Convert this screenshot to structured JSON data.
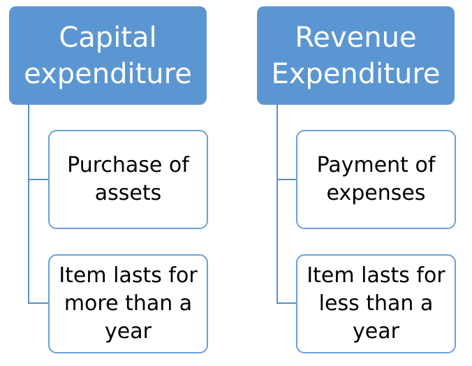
{
  "columns": [
    {
      "header": "Capital\nexpenditure",
      "items": [
        "Purchase of\nassets",
        "Item lasts for\nmore than a\nyear"
      ]
    },
    {
      "header": "Revenue\nExpenditure",
      "items": [
        "Payment of\nexpenses",
        "Item lasts for\nless than a\nyear"
      ]
    }
  ],
  "colors": {
    "header_fill": "#5b96d3",
    "box_border": "#6a9fd7",
    "connector": "#5b8fc6"
  }
}
